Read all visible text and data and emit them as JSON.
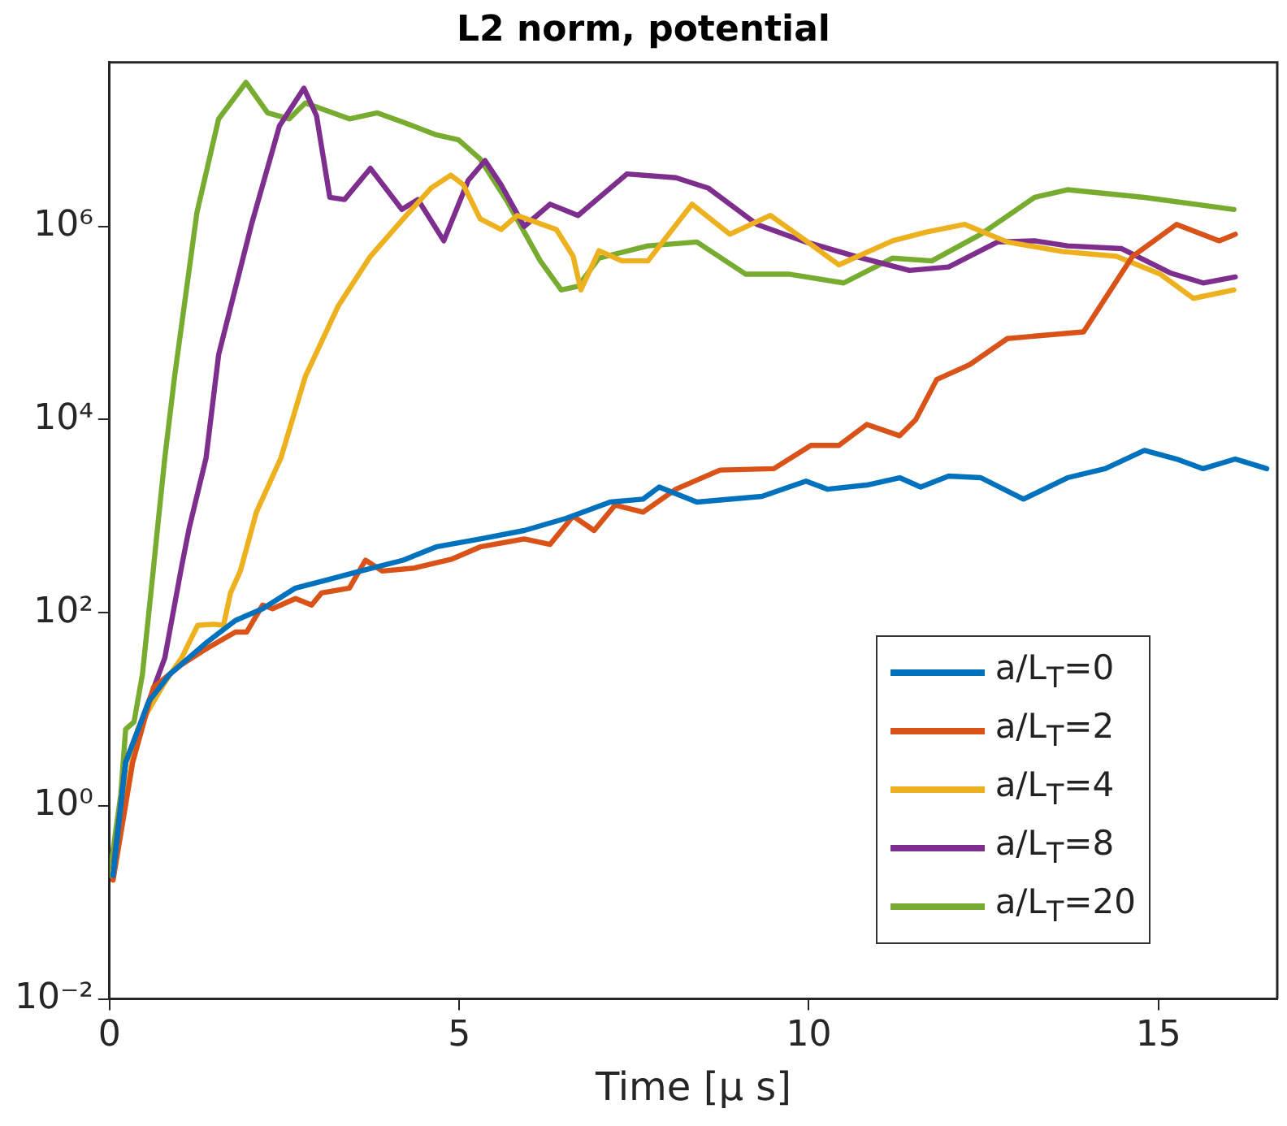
{
  "chart_data": {
    "type": "line",
    "title": "L2 norm, potential",
    "xlabel": "Time [μ s]",
    "log": "y",
    "grid": false,
    "legend": "bottom right",
    "marker": "none",
    "line_style": "solid",
    "xlim": [
      0,
      16.7
    ],
    "xticks": [
      0,
      5,
      10,
      15
    ],
    "ylim": [
      0.01,
      50000000
    ],
    "yticks": [
      {
        "value": 0.01,
        "label": "10⁻²"
      },
      {
        "value": 1,
        "label": "10⁰"
      },
      {
        "value": 100,
        "label": "10²"
      },
      {
        "value": 10000,
        "label": "10⁴"
      },
      {
        "value": 1000000,
        "label": "10⁶"
      }
    ],
    "series": [
      {
        "name": "a/L$_{T}$=0",
        "color": "#0072bd",
        "x": [
          0.05,
          0.23,
          0.56,
          0.86,
          1.4,
          1.8,
          2.19,
          2.66,
          3.13,
          3.59,
          4.2,
          4.67,
          5.3,
          5.93,
          6.53,
          7.16,
          7.63,
          7.86,
          8.4,
          9.33,
          9.96,
          10.27,
          10.83,
          11.3,
          11.6,
          12.0,
          12.46,
          13.07,
          13.7,
          14.24,
          14.8,
          15.26,
          15.64,
          16.1,
          16.55
        ],
        "values": [
          0.19,
          2.8,
          12,
          23,
          50,
          83,
          110,
          180,
          220,
          270,
          350,
          480,
          580,
          710,
          950,
          1400,
          1500,
          2000,
          1400,
          1600,
          2300,
          1900,
          2100,
          2500,
          2000,
          2600,
          2500,
          1500,
          2500,
          3100,
          4800,
          3900,
          3100,
          3900,
          3100
        ]
      },
      {
        "name": "a/L$_{T}$=2",
        "color": "#d95319",
        "x": [
          0.05,
          0.33,
          0.63,
          1.03,
          1.4,
          1.8,
          1.96,
          2.19,
          2.33,
          2.66,
          2.89,
          3.03,
          3.43,
          3.66,
          3.9,
          4.36,
          4.9,
          5.3,
          5.93,
          6.3,
          6.63,
          6.93,
          7.23,
          7.63,
          8.1,
          8.73,
          9.5,
          10.03,
          10.43,
          10.83,
          11.3,
          11.53,
          11.83,
          12.3,
          12.84,
          13.93,
          14.24,
          14.63,
          15.26,
          15.87,
          16.1
        ],
        "values": [
          0.17,
          2.8,
          17,
          29,
          43,
          63,
          63,
          120,
          110,
          140,
          120,
          160,
          180,
          350,
          270,
          290,
          360,
          480,
          580,
          510,
          1000,
          710,
          1300,
          1100,
          1900,
          3000,
          3100,
          5400,
          5400,
          8900,
          6800,
          10000,
          26000,
          37000,
          69000,
          81000,
          180000,
          490000,
          1050000,
          710000,
          830000
        ]
      },
      {
        "name": "a/L$_{T}$=4",
        "color": "#edb120",
        "x": [
          0.05,
          0.4,
          0.79,
          1.03,
          1.26,
          1.49,
          1.63,
          1.73,
          1.87,
          2.1,
          2.45,
          2.8,
          3.27,
          3.73,
          4.2,
          4.6,
          4.88,
          5.06,
          5.3,
          5.6,
          5.83,
          6.39,
          6.63,
          6.74,
          7.0,
          7.33,
          7.7,
          8.33,
          8.87,
          9.45,
          9.96,
          10.43,
          11.2,
          11.67,
          12.23,
          12.84,
          13.63,
          14.4,
          15.03,
          15.5,
          16.08
        ],
        "values": [
          0.21,
          6.2,
          19,
          34,
          74,
          76,
          74,
          160,
          270,
          1100,
          4000,
          28000,
          150000,
          490000,
          1200000,
          2500000,
          3400000,
          2700000,
          1200000,
          930000,
          1300000,
          930000,
          490000,
          220000,
          560000,
          440000,
          440000,
          1700000,
          830000,
          1300000,
          710000,
          400000,
          710000,
          870000,
          1050000,
          690000,
          550000,
          490000,
          320000,
          180000,
          220000
        ]
      },
      {
        "name": "a/L$_{T}$=8",
        "color": "#7e2f8e",
        "x": [
          0.05,
          0.23,
          0.56,
          0.79,
          1.03,
          1.14,
          1.38,
          1.56,
          2.03,
          2.43,
          2.78,
          2.96,
          3.15,
          3.36,
          3.73,
          4.18,
          4.41,
          4.78,
          5.13,
          5.37,
          5.6,
          5.93,
          6.3,
          6.7,
          7.4,
          8.1,
          8.56,
          9.26,
          9.96,
          10.67,
          11.44,
          12.0,
          12.7,
          13.23,
          13.7,
          14.47,
          15.17,
          15.64,
          16.1
        ],
        "values": [
          0.21,
          2.8,
          12,
          34,
          300,
          760,
          4000,
          47000,
          1050000,
          11000000,
          27000000,
          14000000,
          2000000,
          1900000,
          4000000,
          1500000,
          1900000,
          710000,
          3000000,
          4800000,
          2700000,
          1000000,
          1700000,
          1300000,
          3500000,
          3200000,
          2500000,
          1050000,
          690000,
          490000,
          350000,
          380000,
          690000,
          710000,
          630000,
          590000,
          330000,
          260000,
          300000
        ]
      },
      {
        "name": "a/L$_{T}$=20",
        "color": "#77ac30",
        "x": [
          0,
          0.16,
          0.23,
          0.35,
          0.47,
          0.63,
          0.67,
          0.79,
          0.93,
          1.25,
          1.56,
          1.95,
          2.26,
          2.57,
          2.8,
          3.43,
          3.83,
          4.2,
          4.67,
          4.99,
          5.3,
          5.69,
          6.16,
          6.46,
          6.7,
          7.0,
          7.7,
          8.4,
          9.1,
          9.73,
          10.5,
          11.2,
          11.76,
          12.46,
          13.23,
          13.7,
          14.8,
          16.08
        ],
        "values": [
          0.19,
          1.3,
          6.2,
          7.4,
          23,
          300,
          580,
          4000,
          28000,
          1400000,
          13000000,
          31000000,
          15000000,
          13000000,
          19000000,
          13000000,
          15000000,
          12000000,
          8900000,
          7900000,
          5000000,
          1800000,
          440000,
          220000,
          240000,
          470000,
          630000,
          690000,
          320000,
          320000,
          260000,
          470000,
          440000,
          830000,
          2000000,
          2400000,
          2000000,
          1500000
        ]
      }
    ]
  }
}
